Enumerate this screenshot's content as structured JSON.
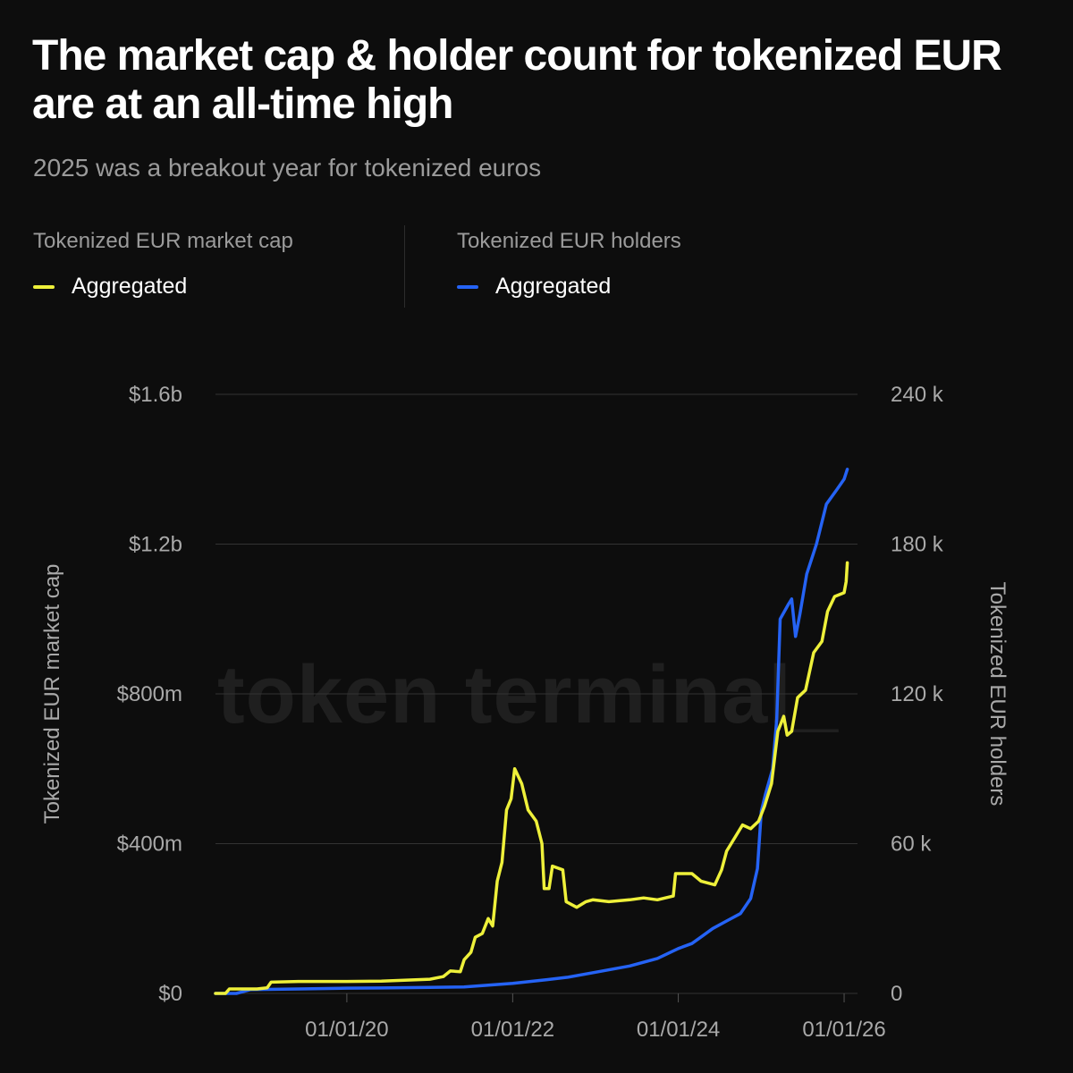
{
  "header": {
    "title": "The market cap & holder count for tokenized EUR are at an all-time high",
    "subtitle": "2025 was a breakout year for tokenized euros"
  },
  "legend": {
    "left": {
      "title": "Tokenized EUR market cap",
      "item": "Aggregated",
      "color": "#eef03a"
    },
    "right": {
      "title": "Tokenized EUR holders",
      "item": "Aggregated",
      "color": "#2563f5"
    }
  },
  "watermark": "token terminal_",
  "colors": {
    "background": "#0d0d0d",
    "grid": "#333333",
    "market_cap": "#eef03a",
    "holders": "#2563f5"
  },
  "chart_data": {
    "type": "line",
    "grid": true,
    "x_axis": {
      "range": [
        "2018-06-01",
        "2026-03-01"
      ],
      "ticks": [
        "2020-01-01",
        "2022-01-01",
        "2024-01-01",
        "2026-01-01"
      ],
      "tick_labels": [
        "01/01/20",
        "01/01/22",
        "01/01/24",
        "01/01/26"
      ]
    },
    "y_left": {
      "label": "Tokenized EUR market cap",
      "range": [
        0,
        1600000000
      ],
      "ticks": [
        0,
        400000000,
        800000000,
        1200000000,
        1600000000
      ],
      "tick_labels": [
        "$0",
        "$400m",
        "$800m",
        "$1.2b",
        "$1.6b"
      ]
    },
    "y_right": {
      "label": "Tokenized EUR holders",
      "range": [
        0,
        240000
      ],
      "ticks": [
        0,
        60000,
        120000,
        180000,
        240000
      ],
      "tick_labels": [
        "0",
        "60 k",
        "120 k",
        "180 k",
        "240 k"
      ]
    },
    "series": [
      {
        "name": "Aggregated",
        "axis": "left",
        "metric": "Tokenized EUR market cap",
        "color": "#eef03a",
        "points": [
          [
            "2018-06-01",
            0
          ],
          [
            "2018-07-15",
            0
          ],
          [
            "2018-08-01",
            12000000
          ],
          [
            "2018-12-01",
            12000000
          ],
          [
            "2019-01-15",
            15000000
          ],
          [
            "2019-02-01",
            30000000
          ],
          [
            "2019-06-01",
            32000000
          ],
          [
            "2020-01-01",
            32000000
          ],
          [
            "2020-06-01",
            33000000
          ],
          [
            "2021-01-01",
            38000000
          ],
          [
            "2021-03-01",
            45000000
          ],
          [
            "2021-04-01",
            60000000
          ],
          [
            "2021-05-15",
            58000000
          ],
          [
            "2021-06-01",
            90000000
          ],
          [
            "2021-07-01",
            110000000
          ],
          [
            "2021-07-20",
            150000000
          ],
          [
            "2021-08-20",
            160000000
          ],
          [
            "2021-09-15",
            200000000
          ],
          [
            "2021-10-05",
            180000000
          ],
          [
            "2021-10-25",
            300000000
          ],
          [
            "2021-11-15",
            350000000
          ],
          [
            "2021-12-05",
            490000000
          ],
          [
            "2021-12-25",
            520000000
          ],
          [
            "2022-01-10",
            600000000
          ],
          [
            "2022-02-10",
            560000000
          ],
          [
            "2022-03-10",
            490000000
          ],
          [
            "2022-04-15",
            460000000
          ],
          [
            "2022-05-10",
            400000000
          ],
          [
            "2022-05-20",
            280000000
          ],
          [
            "2022-06-10",
            280000000
          ],
          [
            "2022-06-25",
            340000000
          ],
          [
            "2022-08-10",
            330000000
          ],
          [
            "2022-08-25",
            245000000
          ],
          [
            "2022-10-10",
            230000000
          ],
          [
            "2022-11-20",
            245000000
          ],
          [
            "2022-12-20",
            250000000
          ],
          [
            "2023-03-01",
            245000000
          ],
          [
            "2023-06-01",
            250000000
          ],
          [
            "2023-08-01",
            255000000
          ],
          [
            "2023-10-01",
            250000000
          ],
          [
            "2023-12-10",
            260000000
          ],
          [
            "2023-12-20",
            320000000
          ],
          [
            "2024-03-01",
            320000000
          ],
          [
            "2024-04-10",
            300000000
          ],
          [
            "2024-06-10",
            290000000
          ],
          [
            "2024-07-10",
            330000000
          ],
          [
            "2024-08-01",
            380000000
          ],
          [
            "2024-09-10",
            420000000
          ],
          [
            "2024-10-10",
            450000000
          ],
          [
            "2024-11-15",
            440000000
          ],
          [
            "2024-12-20",
            460000000
          ],
          [
            "2025-01-15",
            500000000
          ],
          [
            "2025-02-15",
            560000000
          ],
          [
            "2025-03-15",
            700000000
          ],
          [
            "2025-04-10",
            740000000
          ],
          [
            "2025-04-25",
            690000000
          ],
          [
            "2025-05-15",
            700000000
          ],
          [
            "2025-06-10",
            790000000
          ],
          [
            "2025-07-15",
            810000000
          ],
          [
            "2025-08-20",
            910000000
          ],
          [
            "2025-09-25",
            940000000
          ],
          [
            "2025-10-20",
            1020000000
          ],
          [
            "2025-11-20",
            1060000000
          ],
          [
            "2026-01-01",
            1070000000
          ],
          [
            "2026-01-10",
            1100000000
          ],
          [
            "2026-01-15",
            1150000000
          ]
        ]
      },
      {
        "name": "Aggregated",
        "axis": "right",
        "metric": "Tokenized EUR holders",
        "color": "#2563f5",
        "points": [
          [
            "2018-06-01",
            0
          ],
          [
            "2018-09-01",
            0
          ],
          [
            "2018-11-01",
            1500
          ],
          [
            "2019-06-01",
            1800
          ],
          [
            "2020-01-01",
            2100
          ],
          [
            "2020-06-01",
            2200
          ],
          [
            "2021-01-01",
            2400
          ],
          [
            "2021-06-01",
            2600
          ],
          [
            "2022-01-01",
            4000
          ],
          [
            "2022-06-01",
            5500
          ],
          [
            "2022-09-01",
            6500
          ],
          [
            "2023-01-01",
            8500
          ],
          [
            "2023-06-01",
            11000
          ],
          [
            "2023-10-01",
            14000
          ],
          [
            "2024-01-01",
            18000
          ],
          [
            "2024-03-01",
            20000
          ],
          [
            "2024-04-01",
            22000
          ],
          [
            "2024-06-01",
            26000
          ],
          [
            "2024-08-01",
            29000
          ],
          [
            "2024-10-01",
            32000
          ],
          [
            "2024-11-15",
            38000
          ],
          [
            "2024-12-15",
            50000
          ],
          [
            "2025-01-01",
            73000
          ],
          [
            "2025-01-20",
            80000
          ],
          [
            "2025-02-20",
            90000
          ],
          [
            "2025-03-10",
            110000
          ],
          [
            "2025-03-25",
            150000
          ],
          [
            "2025-05-01",
            156000
          ],
          [
            "2025-05-15",
            158000
          ],
          [
            "2025-06-01",
            143000
          ],
          [
            "2025-06-20",
            152000
          ],
          [
            "2025-07-20",
            168000
          ],
          [
            "2025-09-01",
            180000
          ],
          [
            "2025-10-15",
            196000
          ],
          [
            "2025-12-01",
            202000
          ],
          [
            "2026-01-01",
            206000
          ],
          [
            "2026-01-15",
            210000
          ]
        ]
      }
    ]
  }
}
